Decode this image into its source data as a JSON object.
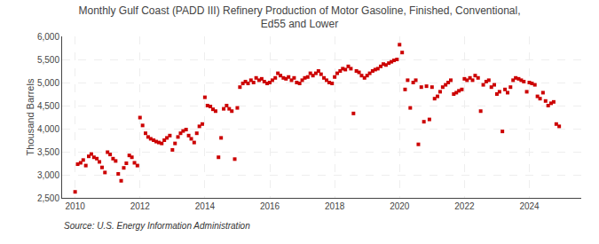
{
  "chart_data": {
    "type": "scatter",
    "title": "Monthly Gulf Coast (PADD III) Refinery Production of Motor Gasoline, Finished, Conventional,\nEd55 and Lower",
    "ylabel": "Thousand Barrels",
    "annotations": [
      "Source: U.S. Energy Information Administration"
    ],
    "color": "#cc0000",
    "marker": "square",
    "grid": true,
    "xlim": [
      2009.6,
      2025.6
    ],
    "xticks": [
      2010,
      2012,
      2014,
      2016,
      2018,
      2020,
      2022,
      2024
    ],
    "ylim": [
      2500,
      6000
    ],
    "yticks": [
      {
        "value": 2500,
        "label": "2,500"
      },
      {
        "value": 3000,
        "label": "3,000"
      },
      {
        "value": 3500,
        "label": "3,500"
      },
      {
        "value": 4000,
        "label": "4,000"
      },
      {
        "value": 4500,
        "label": "4,500"
      },
      {
        "value": 5000,
        "label": "5,000"
      },
      {
        "value": 5500,
        "label": "5,500"
      },
      {
        "value": 6000,
        "label": "6,000"
      }
    ],
    "x": [
      2010.0,
      2010.08,
      2010.17,
      2010.25,
      2010.33,
      2010.42,
      2010.5,
      2010.58,
      2010.67,
      2010.75,
      2010.83,
      2010.92,
      2011.0,
      2011.08,
      2011.17,
      2011.25,
      2011.33,
      2011.42,
      2011.5,
      2011.58,
      2011.67,
      2011.75,
      2011.83,
      2011.92,
      2012.0,
      2012.08,
      2012.17,
      2012.25,
      2012.33,
      2012.42,
      2012.5,
      2012.58,
      2012.67,
      2012.75,
      2012.83,
      2012.92,
      2013.0,
      2013.08,
      2013.17,
      2013.25,
      2013.33,
      2013.42,
      2013.5,
      2013.58,
      2013.67,
      2013.75,
      2013.83,
      2013.92,
      2014.0,
      2014.08,
      2014.17,
      2014.25,
      2014.33,
      2014.42,
      2014.5,
      2014.58,
      2014.67,
      2014.75,
      2014.83,
      2014.92,
      2015.0,
      2015.08,
      2015.17,
      2015.25,
      2015.33,
      2015.42,
      2015.5,
      2015.58,
      2015.67,
      2015.75,
      2015.83,
      2015.92,
      2016.0,
      2016.08,
      2016.17,
      2016.25,
      2016.33,
      2016.42,
      2016.5,
      2016.58,
      2016.67,
      2016.75,
      2016.83,
      2016.92,
      2017.0,
      2017.08,
      2017.17,
      2017.25,
      2017.33,
      2017.42,
      2017.5,
      2017.58,
      2017.67,
      2017.75,
      2017.83,
      2017.92,
      2018.0,
      2018.08,
      2018.17,
      2018.25,
      2018.33,
      2018.42,
      2018.5,
      2018.58,
      2018.67,
      2018.75,
      2018.83,
      2018.92,
      2019.0,
      2019.08,
      2019.17,
      2019.25,
      2019.33,
      2019.42,
      2019.5,
      2019.58,
      2019.67,
      2019.75,
      2019.83,
      2019.92,
      2020.0,
      2020.08,
      2020.17,
      2020.25,
      2020.33,
      2020.42,
      2020.5,
      2020.58,
      2020.67,
      2020.75,
      2020.83,
      2020.92,
      2021.0,
      2021.08,
      2021.17,
      2021.25,
      2021.33,
      2021.42,
      2021.5,
      2021.58,
      2021.67,
      2021.75,
      2021.83,
      2021.92,
      2022.0,
      2022.08,
      2022.17,
      2022.25,
      2022.33,
      2022.42,
      2022.5,
      2022.58,
      2022.67,
      2022.75,
      2022.83,
      2022.92,
      2023.0,
      2023.08,
      2023.17,
      2023.25,
      2023.33,
      2023.42,
      2023.5,
      2023.58,
      2023.67,
      2023.75,
      2023.83,
      2023.92,
      2024.0,
      2024.08,
      2024.17,
      2024.25,
      2024.33,
      2024.42,
      2024.5,
      2024.58,
      2024.67,
      2024.75,
      2024.83,
      2024.92
    ],
    "values": [
      2630,
      3230,
      3260,
      3320,
      3200,
      3400,
      3450,
      3380,
      3350,
      3280,
      3160,
      3050,
      3490,
      3440,
      3350,
      3300,
      3020,
      2870,
      3150,
      3250,
      3420,
      3380,
      3260,
      3200,
      4240,
      4070,
      3900,
      3820,
      3780,
      3750,
      3720,
      3700,
      3680,
      3750,
      3800,
      3850,
      3540,
      3680,
      3820,
      3900,
      3950,
      3980,
      3850,
      3780,
      3700,
      3900,
      4050,
      4100,
      4680,
      4500,
      4480,
      4420,
      4380,
      3380,
      3800,
      4430,
      4500,
      4430,
      4380,
      3340,
      4450,
      4900,
      4980,
      5020,
      4980,
      5050,
      5000,
      5100,
      5050,
      5080,
      5020,
      4980,
      5000,
      5050,
      5100,
      5200,
      5150,
      5100,
      5080,
      5120,
      5050,
      5100,
      5000,
      4980,
      5050,
      5100,
      5120,
      5200,
      5150,
      5200,
      5250,
      5180,
      5100,
      5050,
      5000,
      4980,
      5120,
      5200,
      5250,
      5300,
      5280,
      5350,
      5300,
      4330,
      5250,
      5220,
      5150,
      5100,
      5150,
      5200,
      5250,
      5280,
      5300,
      5350,
      5400,
      5380,
      5420,
      5450,
      5480,
      5500,
      5820,
      5650,
      4850,
      5050,
      4450,
      5000,
      5050,
      3660,
      4900,
      4150,
      4920,
      4200,
      4900,
      4650,
      4700,
      4800,
      4900,
      4950,
      5000,
      5050,
      4750,
      4780,
      4820,
      4850,
      5080,
      5050,
      5100,
      5050,
      5150,
      5100,
      4380,
      4950,
      5020,
      5050,
      4900,
      4950,
      4750,
      4800,
      3940,
      4850,
      4780,
      4900,
      5050,
      5100,
      5080,
      5050,
      5020,
      4800,
      5000,
      4980,
      4950,
      4700,
      4650,
      4780,
      4600,
      4500,
      4550,
      4580,
      4100,
      4050
    ]
  }
}
